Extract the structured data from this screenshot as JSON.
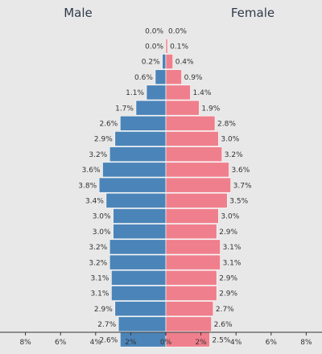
{
  "chart_data": {
    "type": "bar",
    "orientation": "horizontal-diverging",
    "left_label": "Male",
    "right_label": "Female",
    "bar_labels_male": [
      "0.0%",
      "0.0%",
      "0.2%",
      "0.6%",
      "1.1%",
      "1.7%",
      "2.6%",
      "2.9%",
      "3.2%",
      "3.6%",
      "3.8%",
      "3.4%",
      "3.0%",
      "3.0%",
      "3.2%",
      "3.2%",
      "3.1%",
      "3.1%",
      "2.9%",
      "2.7%",
      "2.6%"
    ],
    "bar_labels_female": [
      "0.0%",
      "0.1%",
      "0.4%",
      "0.9%",
      "1.4%",
      "1.9%",
      "2.8%",
      "3.0%",
      "3.2%",
      "3.6%",
      "3.7%",
      "3.5%",
      "3.0%",
      "2.9%",
      "3.1%",
      "3.1%",
      "2.9%",
      "2.9%",
      "2.7%",
      "2.6%",
      "2.5%"
    ],
    "series": [
      {
        "name": "Male",
        "values": [
          0.0,
          0.0,
          0.2,
          0.6,
          1.1,
          1.7,
          2.6,
          2.9,
          3.2,
          3.6,
          3.8,
          3.4,
          3.0,
          3.0,
          3.2,
          3.2,
          3.1,
          3.1,
          2.9,
          2.7,
          2.6
        ]
      },
      {
        "name": "Female",
        "values": [
          0.0,
          0.1,
          0.4,
          0.9,
          1.4,
          1.9,
          2.8,
          3.0,
          3.2,
          3.6,
          3.7,
          3.5,
          3.0,
          2.9,
          3.1,
          3.1,
          2.9,
          2.9,
          2.7,
          2.6,
          2.5
        ]
      }
    ],
    "xlim": [
      -8,
      8
    ],
    "x_ticks": [
      "8%",
      "6%",
      "4%",
      "2%",
      "0%",
      "2%",
      "4%",
      "6%",
      "8%"
    ],
    "colors": {
      "male": "#4b84b8",
      "female": "#ef7f8c",
      "background": "#e8e8e8"
    },
    "grid": false
  }
}
